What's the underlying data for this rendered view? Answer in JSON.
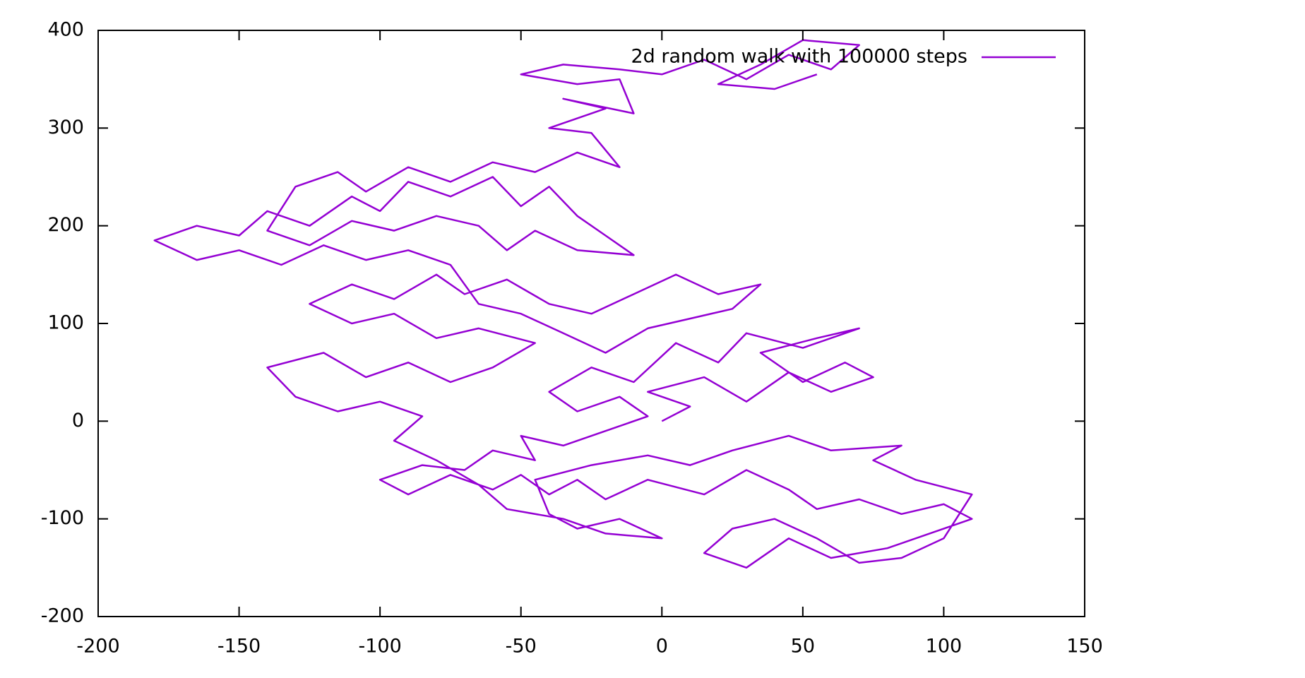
{
  "chart_data": {
    "type": "line",
    "xlim": [
      -200,
      150
    ],
    "xticks": [
      -200,
      -150,
      -100,
      -50,
      0,
      50,
      100,
      150
    ],
    "ylim": [
      -200,
      400
    ],
    "yticks": [
      -200,
      -100,
      0,
      100,
      200,
      300,
      400
    ],
    "legend": "top-right",
    "x": [
      0,
      10,
      -5,
      15,
      30,
      45,
      60,
      75,
      65,
      50,
      35,
      55,
      70,
      50,
      30,
      20,
      5,
      -10,
      -25,
      -40,
      -30,
      -15,
      -5,
      -20,
      -35,
      -50,
      -45,
      -60,
      -70,
      -85,
      -100,
      -90,
      -75,
      -60,
      -50,
      -40,
      -30,
      -20,
      -5,
      15,
      30,
      45,
      55,
      70,
      85,
      100,
      110,
      95,
      80,
      60,
      45,
      30,
      15,
      25,
      40,
      55,
      70,
      85,
      100,
      110,
      90,
      75,
      85,
      60,
      45,
      25,
      10,
      -5,
      -25,
      -45,
      -40,
      -30,
      -15,
      0,
      -20,
      -35,
      -55,
      -65,
      -80,
      -95,
      -85,
      -100,
      -115,
      -130,
      -140,
      -120,
      -105,
      -90,
      -75,
      -60,
      -45,
      -65,
      -80,
      -95,
      -110,
      -125,
      -110,
      -95,
      -80,
      -70,
      -55,
      -40,
      -25,
      -10,
      5,
      20,
      35,
      25,
      10,
      -5,
      -20,
      -35,
      -50,
      -65,
      -75,
      -90,
      -105,
      -120,
      -135,
      -150,
      -165,
      -180,
      -165,
      -150,
      -140,
      -125,
      -110,
      -100,
      -90,
      -75,
      -60,
      -50,
      -40,
      -30,
      -20,
      -10,
      -30,
      -45,
      -55,
      -65,
      -80,
      -95,
      -110,
      -125,
      -140,
      -130,
      -115,
      -105,
      -90,
      -75,
      -60,
      -45,
      -30,
      -15,
      -25,
      -40,
      -20,
      -35,
      -10,
      -15,
      -30,
      -50,
      -35,
      -15,
      0,
      15,
      30,
      45,
      60,
      70,
      50,
      35,
      20,
      40,
      55
    ],
    "series": [
      {
        "name": "2d random walk with 100000 steps",
        "color": "#9400d3",
        "values": [
          0,
          15,
          30,
          45,
          20,
          50,
          30,
          45,
          60,
          40,
          70,
          85,
          95,
          75,
          90,
          60,
          80,
          40,
          55,
          30,
          10,
          25,
          5,
          -10,
          -25,
          -15,
          -40,
          -30,
          -50,
          -45,
          -60,
          -75,
          -55,
          -70,
          -55,
          -75,
          -60,
          -80,
          -60,
          -75,
          -50,
          -70,
          -90,
          -80,
          -95,
          -85,
          -100,
          -115,
          -130,
          -140,
          -120,
          -150,
          -135,
          -110,
          -100,
          -120,
          -145,
          -140,
          -120,
          -75,
          -60,
          -40,
          -25,
          -30,
          -15,
          -30,
          -45,
          -35,
          -45,
          -60,
          -95,
          -110,
          -100,
          -120,
          -115,
          -100,
          -90,
          -65,
          -40,
          -20,
          5,
          20,
          10,
          25,
          55,
          70,
          45,
          60,
          40,
          55,
          80,
          95,
          85,
          110,
          100,
          120,
          140,
          125,
          150,
          130,
          145,
          120,
          110,
          130,
          150,
          130,
          140,
          115,
          105,
          95,
          70,
          90,
          110,
          120,
          160,
          175,
          165,
          180,
          160,
          175,
          165,
          185,
          200,
          190,
          215,
          200,
          230,
          215,
          245,
          230,
          250,
          220,
          240,
          210,
          190,
          170,
          175,
          195,
          175,
          200,
          210,
          195,
          205,
          180,
          195,
          240,
          255,
          235,
          260,
          245,
          265,
          255,
          275,
          260,
          295,
          300,
          320,
          330,
          315,
          350,
          345,
          355,
          365,
          360,
          355,
          370,
          350,
          375,
          360,
          385,
          390,
          365,
          345,
          340,
          355
        ]
      }
    ]
  }
}
